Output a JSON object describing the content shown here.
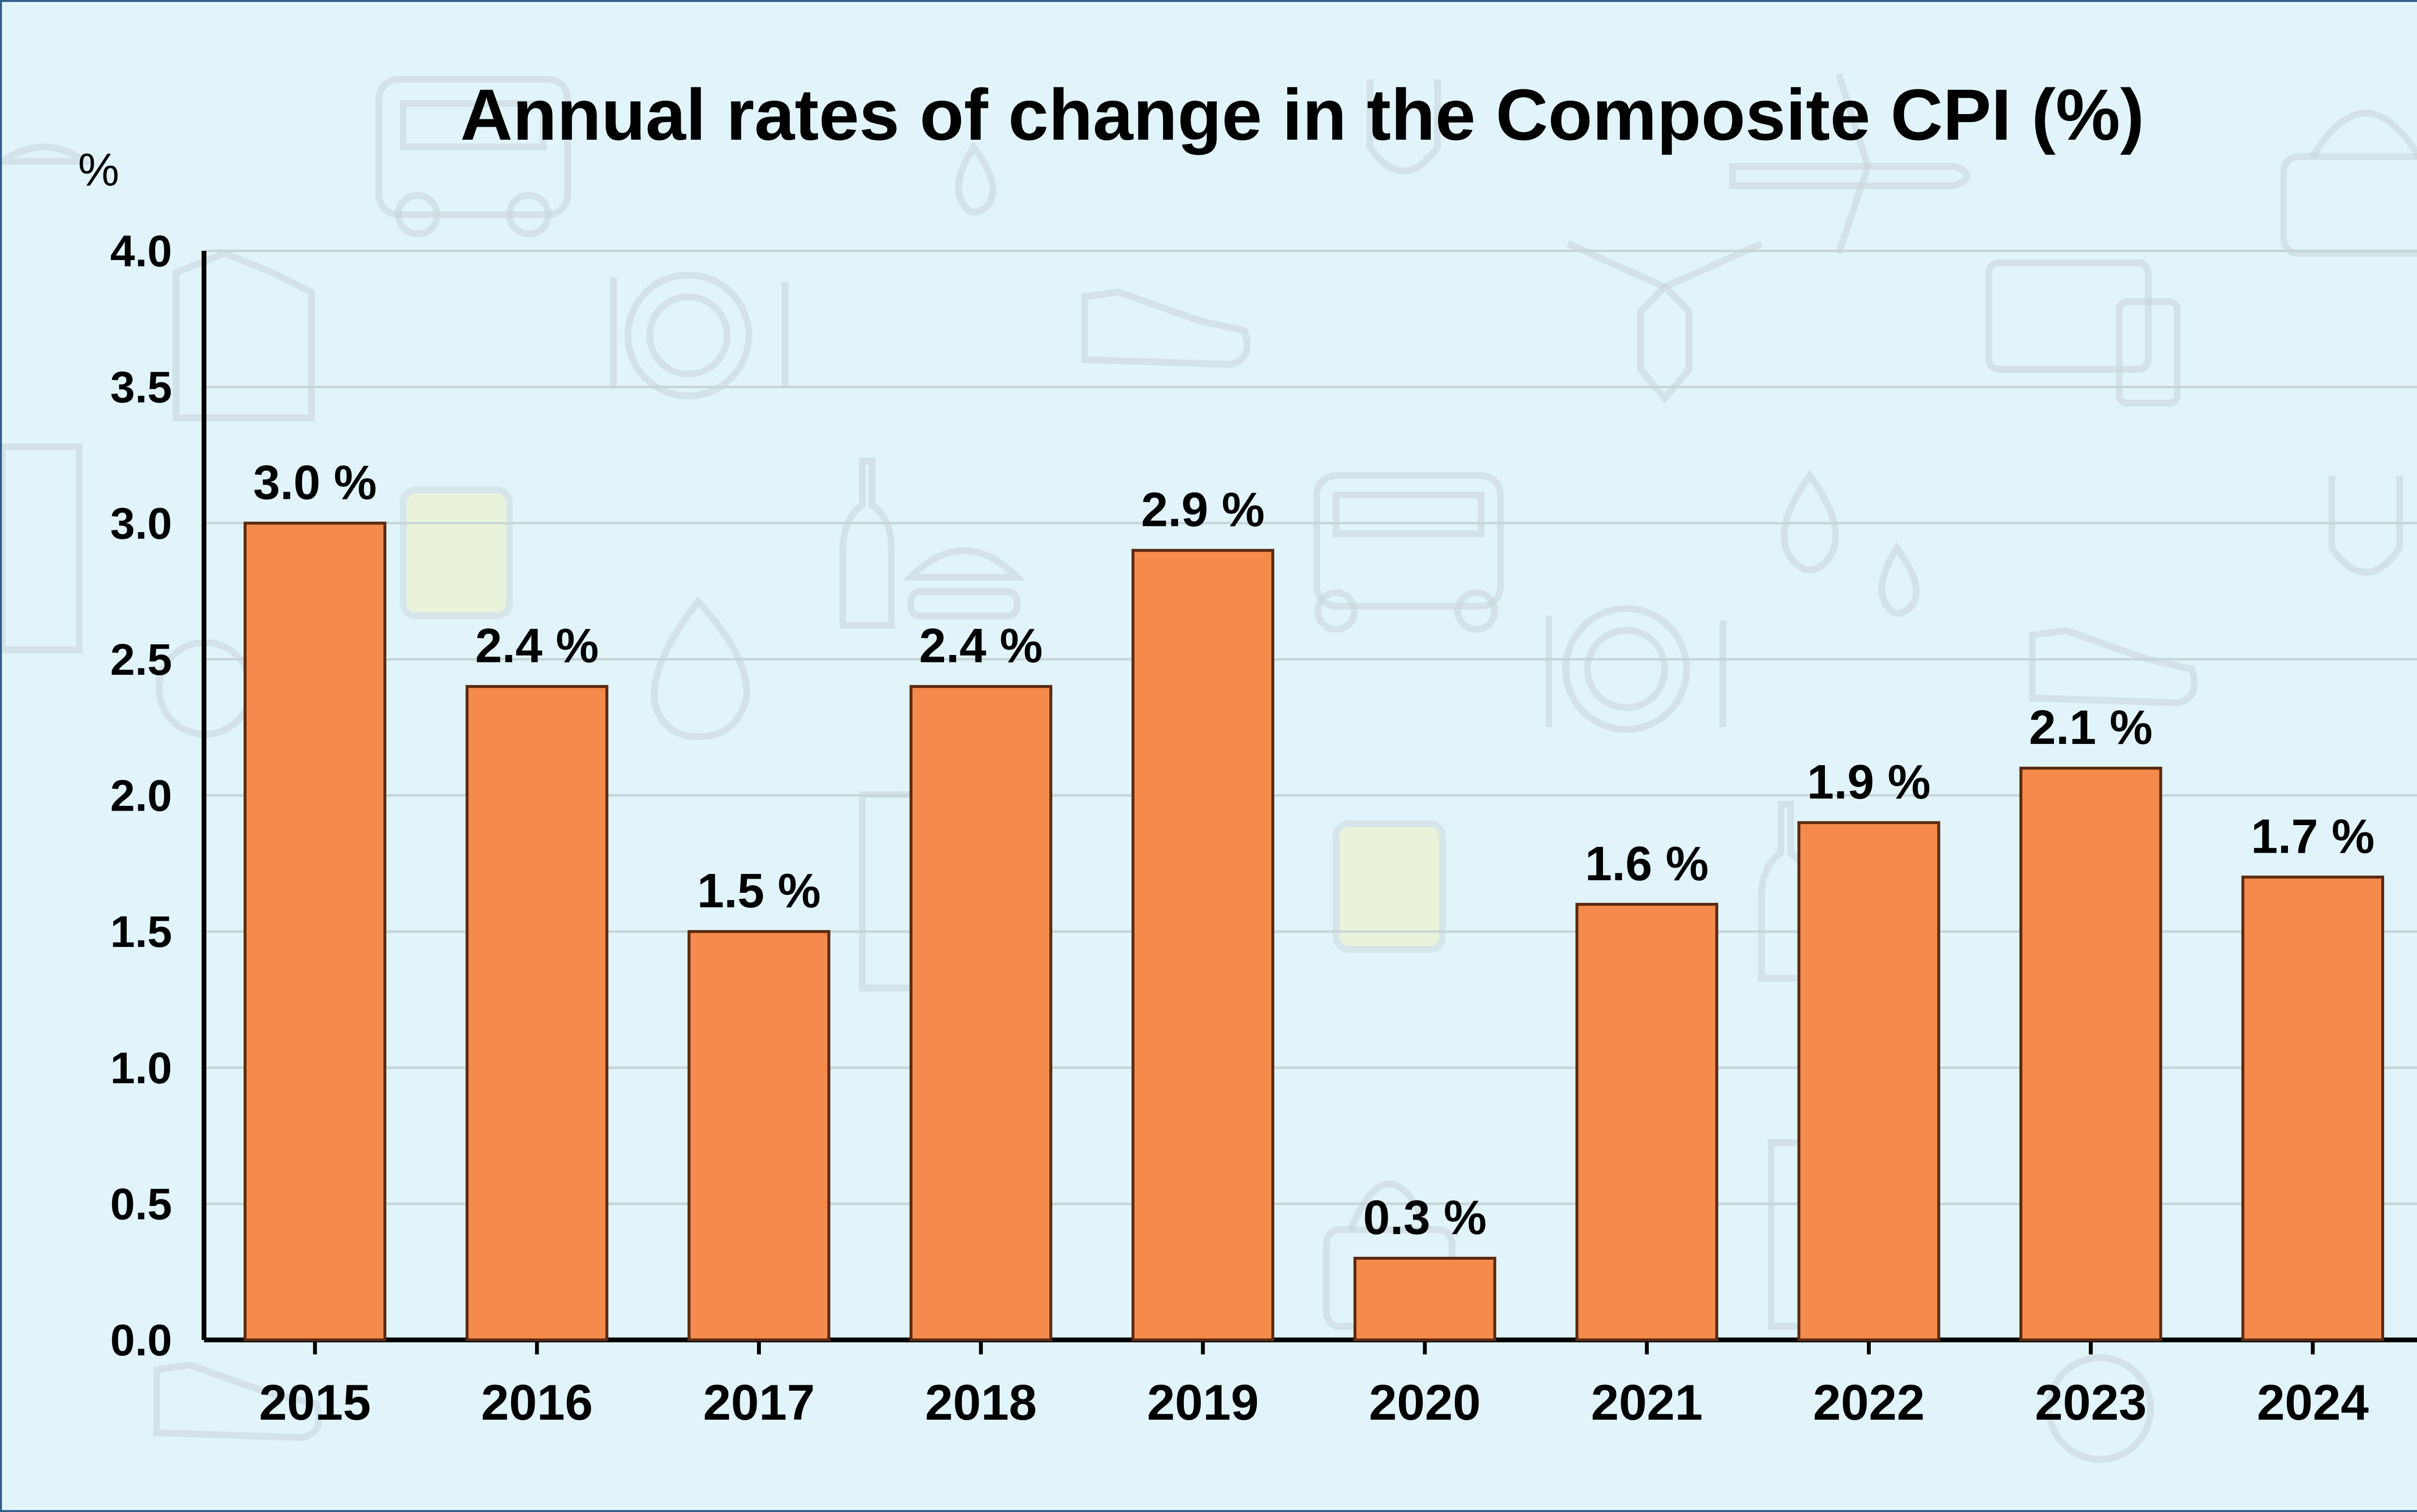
{
  "chart_data": {
    "type": "bar",
    "title": "Annual rates of change in the Composite CPI (%)",
    "ylabel": "%",
    "xlabel": "",
    "ylim": [
      0,
      4.0
    ],
    "yticks": [
      "0.0",
      "0.5",
      "1.0",
      "1.5",
      "2.0",
      "2.5",
      "3.0",
      "3.5",
      "4.0"
    ],
    "categories": [
      "2015",
      "2016",
      "2017",
      "2018",
      "2019",
      "2020",
      "2021",
      "2022",
      "2023",
      "2024"
    ],
    "values": [
      3.0,
      2.4,
      1.5,
      2.4,
      2.9,
      0.3,
      1.6,
      1.9,
      2.1,
      1.7
    ],
    "data_labels": [
      "3.0 %",
      "2.4 %",
      "1.5 %",
      "2.4 %",
      "2.9 %",
      "0.3 %",
      "1.6 %",
      "1.9 %",
      "2.1 %",
      "1.7 %"
    ],
    "grid": true,
    "colors": {
      "bar": "#f48a4b",
      "bar_edge": "#5a2a10",
      "grid": "#c8d4d8",
      "axis": "#000000"
    }
  }
}
